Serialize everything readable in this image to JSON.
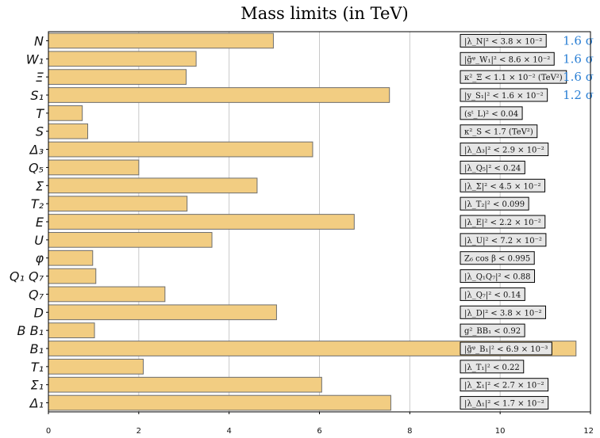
{
  "chart_data": {
    "type": "bar",
    "orientation": "horizontal",
    "title": "Mass limits (in TeV)",
    "xlim": [
      0,
      12
    ],
    "x_ticks": [
      "0",
      "2",
      "4",
      "6",
      "8",
      "10",
      "12"
    ],
    "grid": true,
    "bar_color": "#f2cd82",
    "bar_edge_color": "#6e6e6e",
    "significance_color": "#2a7fd4",
    "categories": [
      "N",
      "W₁",
      "Ξ",
      "S₁",
      "T",
      "S",
      "Δ₃",
      "Q₅",
      "Σ",
      "T₂",
      "E",
      "U",
      "φ",
      "Q₁ Q₇",
      "Q₇",
      "D",
      "B B₁",
      "B₁",
      "T₁",
      "Σ₁",
      "Δ₁"
    ],
    "values": [
      4.98,
      3.27,
      3.05,
      7.55,
      0.75,
      0.87,
      5.85,
      2.0,
      4.62,
      3.07,
      6.77,
      3.62,
      0.98,
      1.05,
      2.58,
      5.05,
      1.02,
      11.68,
      2.1,
      6.05,
      7.58
    ],
    "annotations": [
      "|λ_N|² < 3.8 × 10⁻²",
      "|g̃ᵠ_W₁|² < 8.6 × 10⁻²",
      "κ²_Ξ < 1.1 × 10⁻² (TeV²)",
      "|y_S₁|² < 1.6 × 10⁻²",
      "(sᵗ_L)² < 0.04",
      "κ²_S < 1.7 (TeV²)",
      "|λ_Δ₃|² < 2.9 × 10⁻²",
      "|λ_Q₅|² < 0.24",
      "|λ_Σ|² < 4.5 × 10⁻²",
      "|λ_T₂|² < 0.099",
      "|λ_E|² < 2.2 × 10⁻²",
      "|λ_U|² < 7.2 × 10⁻²",
      "Z₆ cos β < 0.995",
      "|λ_Q₁Q₇|² < 0.88",
      "|λ_Q₇|² < 0.14",
      "|λ_D|² < 3.8 × 10⁻²",
      "g²_BB₁ < 0.92",
      "|g̃ᵠ_B₁|² < 6.9 × 10⁻³",
      "|λ_T₁|² < 0.22",
      "|λ_Σ₁|² < 2.7 × 10⁻²",
      "|λ_Δ₁|² < 1.7 × 10⁻²"
    ],
    "significance": [
      "1.6 σ",
      "1.6 σ",
      "1.6 σ",
      "1.2 σ",
      "",
      "",
      "",
      "",
      "",
      "",
      "",
      "",
      "",
      "",
      "",
      "",
      "",
      "",
      "",
      "",
      ""
    ]
  }
}
